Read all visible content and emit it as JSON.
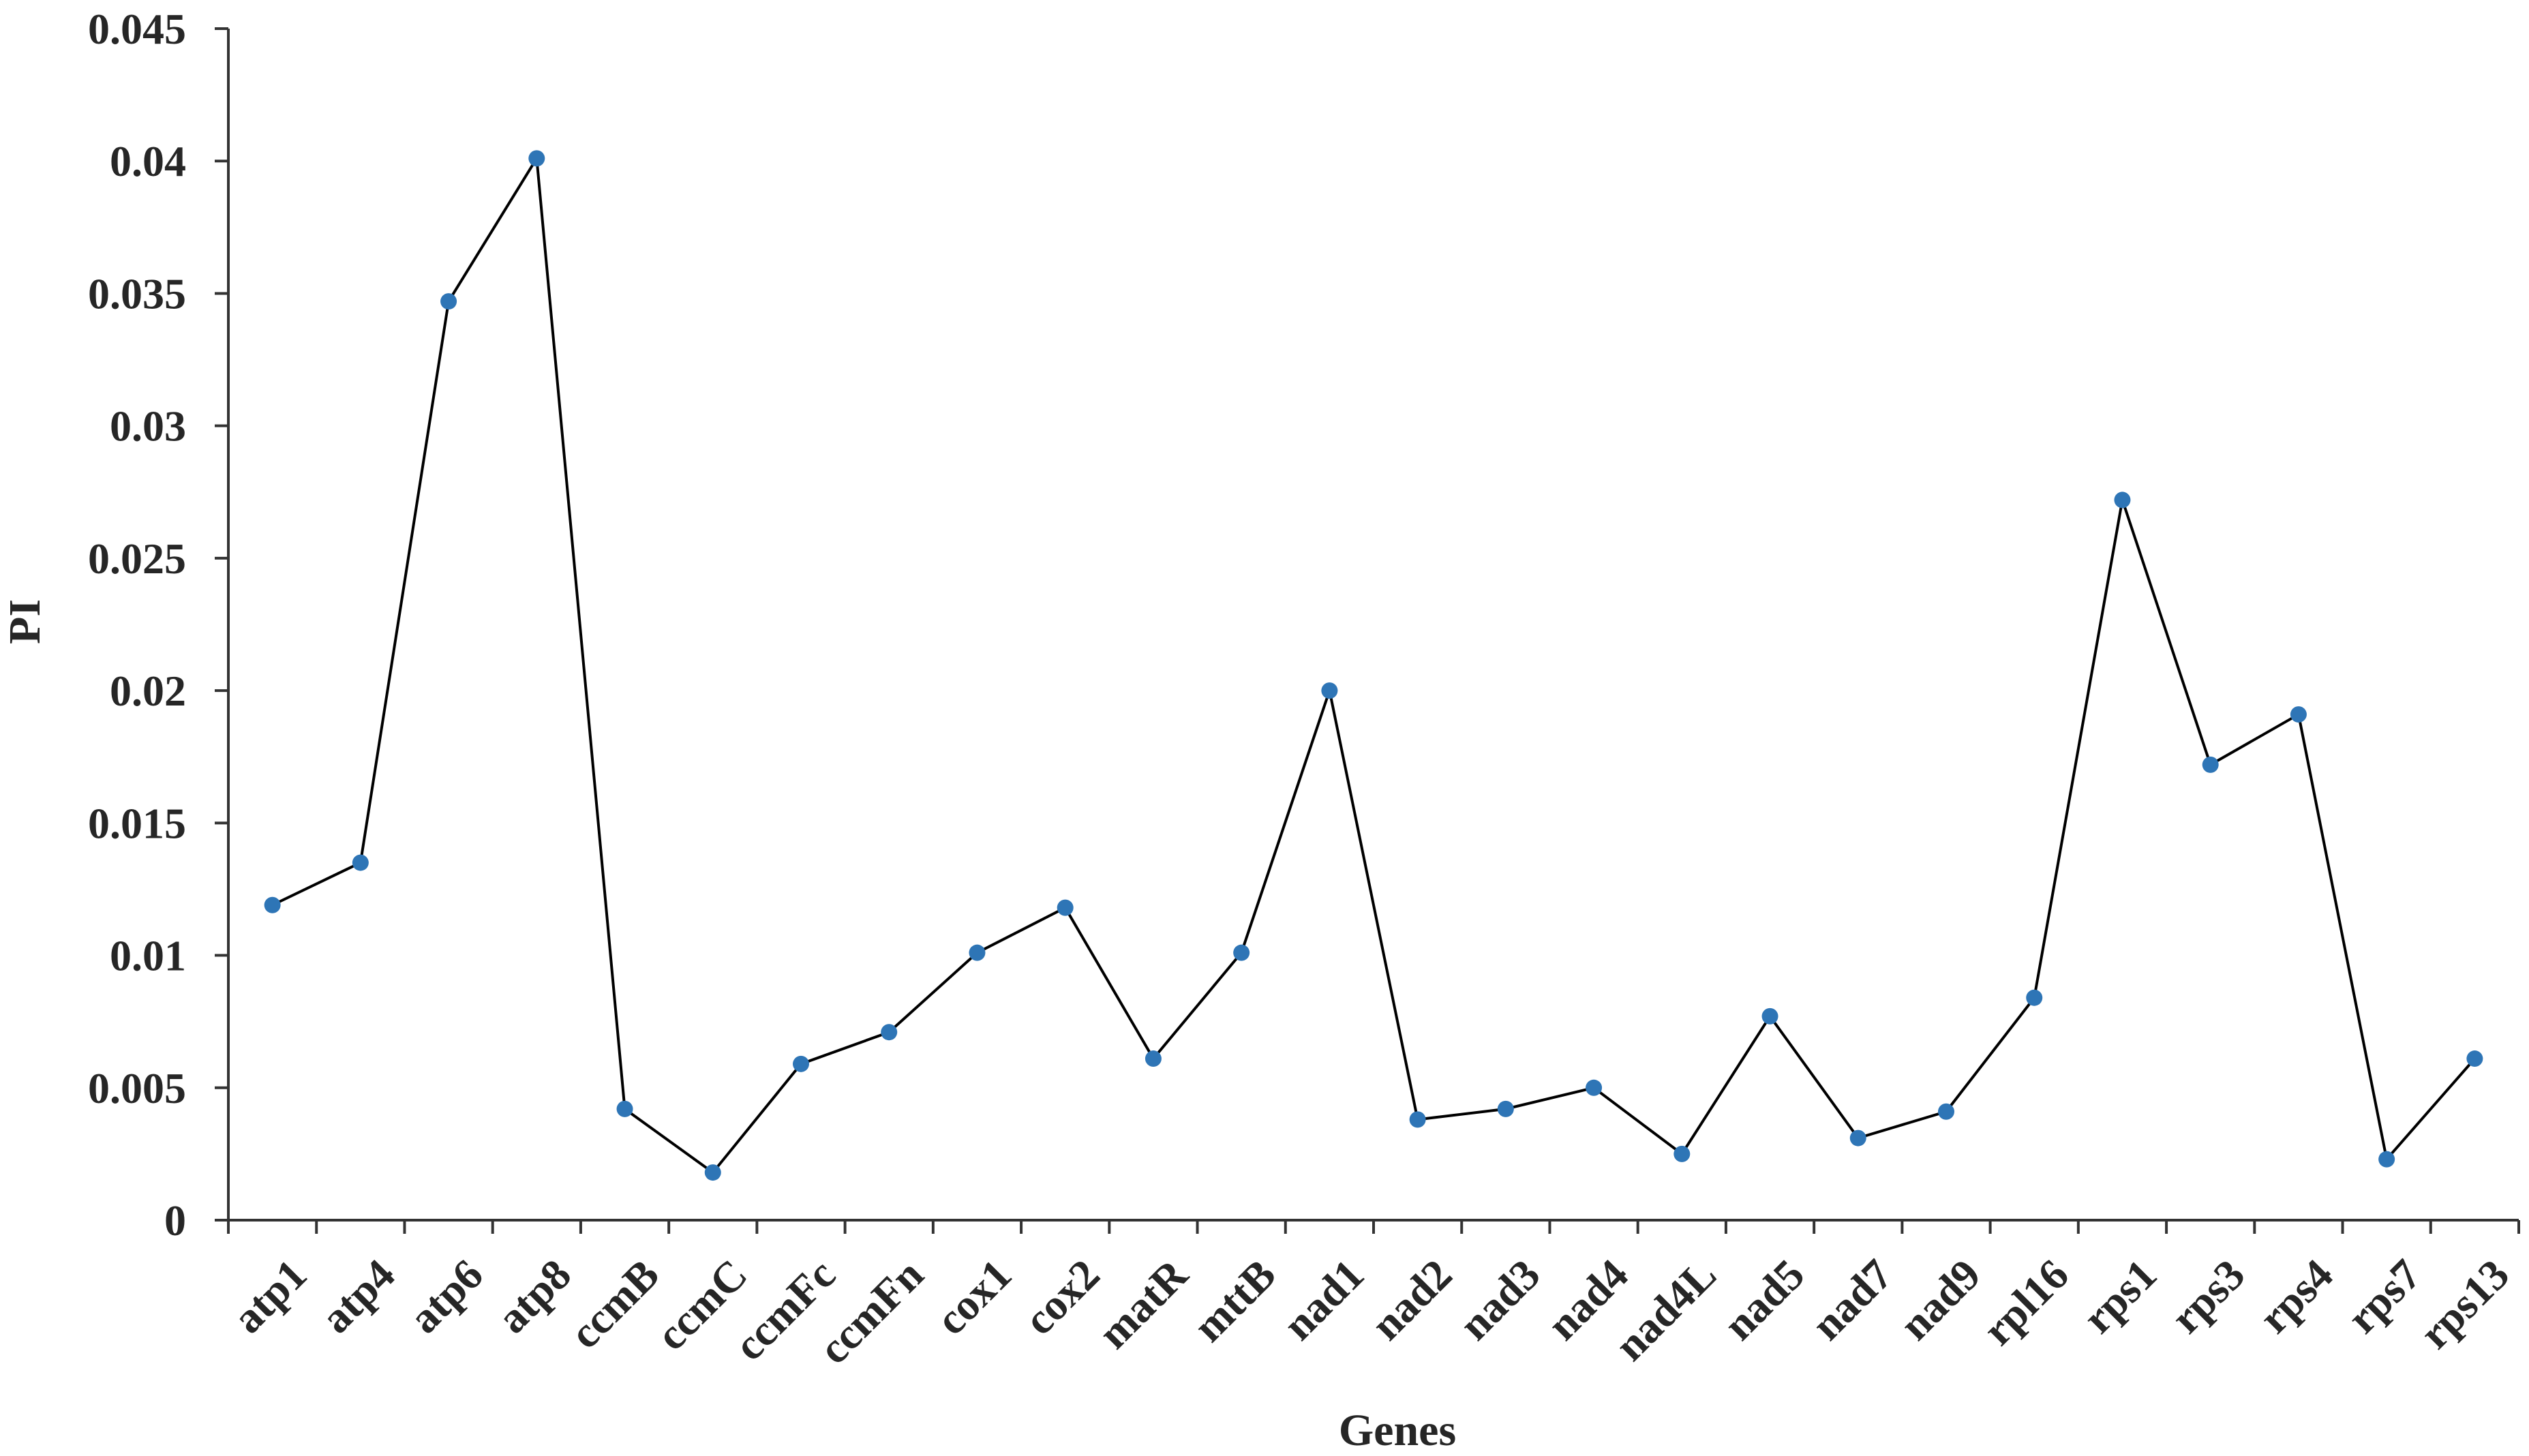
{
  "chart_data": {
    "type": "line",
    "xlabel": "Genes",
    "ylabel": "PI",
    "ylim": [
      0,
      0.045
    ],
    "yticks": [
      "0",
      "0.005",
      "0.01",
      "0.015",
      "0.02",
      "0.025",
      "0.03",
      "0.035",
      "0.04",
      "0.045"
    ],
    "grid": false,
    "legend": "none",
    "categories": [
      "atp1",
      "atp4",
      "atp6",
      "atp8",
      "ccmB",
      "ccmC",
      "ccmFc",
      "ccmFn",
      "cox1",
      "cox2",
      "matR",
      "mttB",
      "nad1",
      "nad2",
      "nad3",
      "nad4",
      "nad4L",
      "nad5",
      "nad7",
      "nad9",
      "rpl16",
      "rps1",
      "rps3",
      "rps4",
      "rps7",
      "rps13"
    ],
    "series": [
      {
        "values": [
          0.0119,
          0.0135,
          0.0347,
          0.0401,
          0.0042,
          0.0018,
          0.0059,
          0.0071,
          0.0101,
          0.0118,
          0.0061,
          0.0101,
          0.02,
          0.0038,
          0.0042,
          0.005,
          0.0025,
          0.0077,
          0.0031,
          0.0041,
          0.0084,
          0.0272,
          0.0172,
          0.0191,
          0.0023,
          0.0061
        ],
        "line_color": "#000000",
        "marker_color": "#2E75B6"
      }
    ]
  }
}
